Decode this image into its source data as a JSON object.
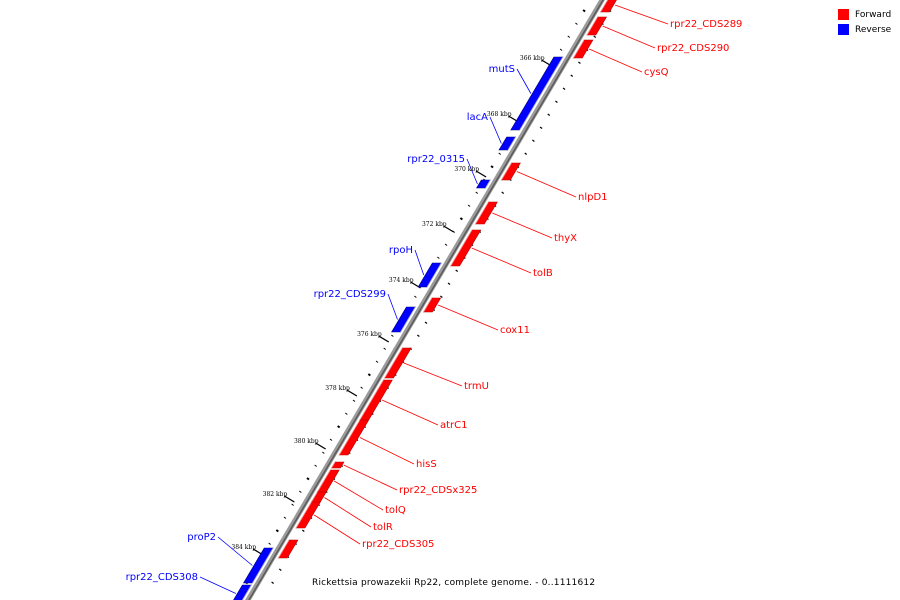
{
  "legend": {
    "forward": {
      "label": "Forward",
      "color": "#ff0000"
    },
    "reverse": {
      "label": "Reverse",
      "color": "#0000ff"
    }
  },
  "caption": "Rickettsia prowazekii Rp22, complete genome. - 0..1111612",
  "ticks": [
    "366 kbp",
    "368 kbp",
    "370 kbp",
    "372 kbp",
    "374 kbp",
    "376 kbp",
    "378 kbp",
    "380 kbp",
    "382 kbp",
    "384 kbp"
  ],
  "genes_forward": [
    "rpr22_CDS289",
    "rpr22_CDS290",
    "cysQ",
    "nlpD1",
    "thyX",
    "tolB",
    "cox11",
    "trmU",
    "atrC1",
    "hisS",
    "rpr22_CDSx325",
    "tolQ",
    "tolR",
    "rpr22_CDS305"
  ],
  "genes_reverse": [
    "mutS",
    "lacA",
    "rpr22_0315",
    "rpoH",
    "rpr22_CDS299",
    "proP2",
    "rpr22_CDS308"
  ]
}
